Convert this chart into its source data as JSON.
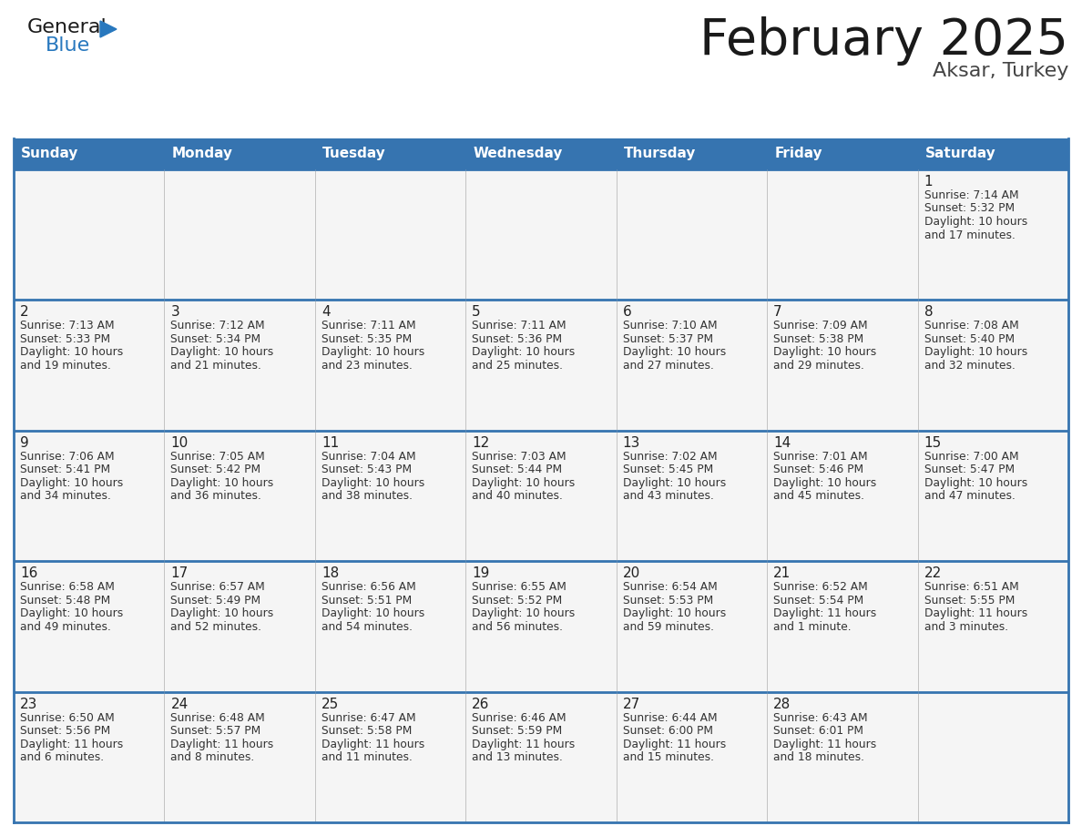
{
  "title": "February 2025",
  "subtitle": "Aksar, Turkey",
  "days_of_week": [
    "Sunday",
    "Monday",
    "Tuesday",
    "Wednesday",
    "Thursday",
    "Friday",
    "Saturday"
  ],
  "header_bg": "#3674B0",
  "header_text": "#FFFFFF",
  "cell_bg": "#F5F5F5",
  "border_color": "#3674B0",
  "title_color": "#1A1A1A",
  "subtitle_color": "#444444",
  "day_num_color": "#222222",
  "text_color": "#333333",
  "logo_general_color": "#1A1A1A",
  "logo_blue_color": "#2878BE",
  "calendar": [
    [
      {
        "day": null,
        "info": ""
      },
      {
        "day": null,
        "info": ""
      },
      {
        "day": null,
        "info": ""
      },
      {
        "day": null,
        "info": ""
      },
      {
        "day": null,
        "info": ""
      },
      {
        "day": null,
        "info": ""
      },
      {
        "day": 1,
        "info": "Sunrise: 7:14 AM\nSunset: 5:32 PM\nDaylight: 10 hours\nand 17 minutes."
      }
    ],
    [
      {
        "day": 2,
        "info": "Sunrise: 7:13 AM\nSunset: 5:33 PM\nDaylight: 10 hours\nand 19 minutes."
      },
      {
        "day": 3,
        "info": "Sunrise: 7:12 AM\nSunset: 5:34 PM\nDaylight: 10 hours\nand 21 minutes."
      },
      {
        "day": 4,
        "info": "Sunrise: 7:11 AM\nSunset: 5:35 PM\nDaylight: 10 hours\nand 23 minutes."
      },
      {
        "day": 5,
        "info": "Sunrise: 7:11 AM\nSunset: 5:36 PM\nDaylight: 10 hours\nand 25 minutes."
      },
      {
        "day": 6,
        "info": "Sunrise: 7:10 AM\nSunset: 5:37 PM\nDaylight: 10 hours\nand 27 minutes."
      },
      {
        "day": 7,
        "info": "Sunrise: 7:09 AM\nSunset: 5:38 PM\nDaylight: 10 hours\nand 29 minutes."
      },
      {
        "day": 8,
        "info": "Sunrise: 7:08 AM\nSunset: 5:40 PM\nDaylight: 10 hours\nand 32 minutes."
      }
    ],
    [
      {
        "day": 9,
        "info": "Sunrise: 7:06 AM\nSunset: 5:41 PM\nDaylight: 10 hours\nand 34 minutes."
      },
      {
        "day": 10,
        "info": "Sunrise: 7:05 AM\nSunset: 5:42 PM\nDaylight: 10 hours\nand 36 minutes."
      },
      {
        "day": 11,
        "info": "Sunrise: 7:04 AM\nSunset: 5:43 PM\nDaylight: 10 hours\nand 38 minutes."
      },
      {
        "day": 12,
        "info": "Sunrise: 7:03 AM\nSunset: 5:44 PM\nDaylight: 10 hours\nand 40 minutes."
      },
      {
        "day": 13,
        "info": "Sunrise: 7:02 AM\nSunset: 5:45 PM\nDaylight: 10 hours\nand 43 minutes."
      },
      {
        "day": 14,
        "info": "Sunrise: 7:01 AM\nSunset: 5:46 PM\nDaylight: 10 hours\nand 45 minutes."
      },
      {
        "day": 15,
        "info": "Sunrise: 7:00 AM\nSunset: 5:47 PM\nDaylight: 10 hours\nand 47 minutes."
      }
    ],
    [
      {
        "day": 16,
        "info": "Sunrise: 6:58 AM\nSunset: 5:48 PM\nDaylight: 10 hours\nand 49 minutes."
      },
      {
        "day": 17,
        "info": "Sunrise: 6:57 AM\nSunset: 5:49 PM\nDaylight: 10 hours\nand 52 minutes."
      },
      {
        "day": 18,
        "info": "Sunrise: 6:56 AM\nSunset: 5:51 PM\nDaylight: 10 hours\nand 54 minutes."
      },
      {
        "day": 19,
        "info": "Sunrise: 6:55 AM\nSunset: 5:52 PM\nDaylight: 10 hours\nand 56 minutes."
      },
      {
        "day": 20,
        "info": "Sunrise: 6:54 AM\nSunset: 5:53 PM\nDaylight: 10 hours\nand 59 minutes."
      },
      {
        "day": 21,
        "info": "Sunrise: 6:52 AM\nSunset: 5:54 PM\nDaylight: 11 hours\nand 1 minute."
      },
      {
        "day": 22,
        "info": "Sunrise: 6:51 AM\nSunset: 5:55 PM\nDaylight: 11 hours\nand 3 minutes."
      }
    ],
    [
      {
        "day": 23,
        "info": "Sunrise: 6:50 AM\nSunset: 5:56 PM\nDaylight: 11 hours\nand 6 minutes."
      },
      {
        "day": 24,
        "info": "Sunrise: 6:48 AM\nSunset: 5:57 PM\nDaylight: 11 hours\nand 8 minutes."
      },
      {
        "day": 25,
        "info": "Sunrise: 6:47 AM\nSunset: 5:58 PM\nDaylight: 11 hours\nand 11 minutes."
      },
      {
        "day": 26,
        "info": "Sunrise: 6:46 AM\nSunset: 5:59 PM\nDaylight: 11 hours\nand 13 minutes."
      },
      {
        "day": 27,
        "info": "Sunrise: 6:44 AM\nSunset: 6:00 PM\nDaylight: 11 hours\nand 15 minutes."
      },
      {
        "day": 28,
        "info": "Sunrise: 6:43 AM\nSunset: 6:01 PM\nDaylight: 11 hours\nand 18 minutes."
      },
      {
        "day": null,
        "info": ""
      }
    ]
  ]
}
